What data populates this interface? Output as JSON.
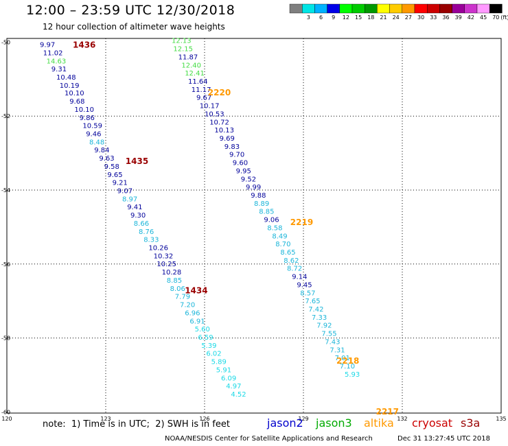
{
  "header": {
    "title": "12:00 – 23:59 UTC 12/30/2018",
    "subtitle": "12 hour collection of altimeter wave heights"
  },
  "legend_bar": {
    "unit": "(ft)",
    "bins": [
      {
        "label": "",
        "color": "#7f7f7f"
      },
      {
        "label": "3",
        "color": "#00e5e5"
      },
      {
        "label": "6",
        "color": "#00b2ff"
      },
      {
        "label": "9",
        "color": "#0000e8"
      },
      {
        "label": "12",
        "color": "#00ff00"
      },
      {
        "label": "15",
        "color": "#00cc00"
      },
      {
        "label": "18",
        "color": "#009900"
      },
      {
        "label": "21",
        "color": "#ffff00"
      },
      {
        "label": "24",
        "color": "#ffcc00"
      },
      {
        "label": "27",
        "color": "#ff9900"
      },
      {
        "label": "30",
        "color": "#ff0000"
      },
      {
        "label": "33",
        "color": "#cc0000"
      },
      {
        "label": "36",
        "color": "#990000"
      },
      {
        "label": "39",
        "color": "#990099"
      },
      {
        "label": "42",
        "color": "#cc33cc"
      },
      {
        "label": "45",
        "color": "#ff99ff"
      },
      {
        "label": "70",
        "color": "#000000"
      }
    ]
  },
  "note": "note:  1) Time is in UTC;  2) SWH is in feet",
  "satellites": [
    {
      "name": "jason2",
      "color": "#0000cc"
    },
    {
      "name": "jason3",
      "color": "#00aa00"
    },
    {
      "name": "altika",
      "color": "#ff9900"
    },
    {
      "name": "cryosat",
      "color": "#cc0000"
    },
    {
      "name": "s3a",
      "color": "#990000"
    }
  ],
  "footer": "NOAA/NESDIS Center for Satellite Applications and Research",
  "timestamp": "Dec 31 13:27:45 UTC 2018",
  "chart_data": {
    "type": "scatter",
    "xlim": [
      120,
      135
    ],
    "ylim": [
      -60.03,
      -49.9
    ],
    "x_ticks": [
      "120",
      "123",
      "126",
      "129",
      "132",
      "135"
    ],
    "y_ticks": [
      "-50",
      "-52",
      "-54",
      "-56",
      "-58",
      "-60"
    ],
    "grid": true,
    "pass_labels": [
      {
        "text": "1436",
        "x": 122.0,
        "y": -50.06,
        "color": "#990000"
      },
      {
        "text": "1435",
        "x": 123.6,
        "y": -53.2,
        "color": "#990000"
      },
      {
        "text": "1434",
        "x": 125.4,
        "y": -56.7,
        "color": "#990000"
      },
      {
        "text": "2220",
        "x": 126.1,
        "y": -51.35,
        "color": "#ff9900"
      },
      {
        "text": "2219",
        "x": 128.6,
        "y": -54.85,
        "color": "#ff9900"
      },
      {
        "text": "2218",
        "x": 130.0,
        "y": -58.6,
        "color": "#ff9900"
      },
      {
        "text": "2217",
        "x": 131.2,
        "y": -59.97,
        "color": "#ff9900"
      }
    ],
    "series": [
      {
        "name": "1436",
        "points": [
          {
            "x": 121.0,
            "y": -50.06,
            "v": "9.97",
            "color": "#00009a"
          },
          {
            "x": 121.1,
            "y": -50.28,
            "v": "11.02",
            "color": "#00009a"
          },
          {
            "x": 121.2,
            "y": -50.5,
            "v": "14.63",
            "color": "#44dd44"
          },
          {
            "x": 121.35,
            "y": -50.72,
            "v": "9.31",
            "color": "#00009a"
          },
          {
            "x": 121.5,
            "y": -50.94,
            "v": "10.48",
            "color": "#00009a"
          },
          {
            "x": 121.6,
            "y": -51.16,
            "v": "10.19",
            "color": "#00009a"
          },
          {
            "x": 121.75,
            "y": -51.37,
            "v": "10.10",
            "color": "#00009a"
          },
          {
            "x": 121.9,
            "y": -51.59,
            "v": "9.68",
            "color": "#00009a"
          },
          {
            "x": 122.05,
            "y": -51.81,
            "v": "10.10",
            "color": "#00009a"
          },
          {
            "x": 122.2,
            "y": -52.03,
            "v": "9.86",
            "color": "#00009a"
          },
          {
            "x": 122.3,
            "y": -52.25,
            "v": "10.59",
            "color": "#00009a"
          },
          {
            "x": 122.4,
            "y": -52.47,
            "v": "9.46",
            "color": "#00009a"
          },
          {
            "x": 122.5,
            "y": -52.69,
            "v": "8.48",
            "color": "#1ab5d9"
          },
          {
            "x": 122.65,
            "y": -52.91,
            "v": "9.84",
            "color": "#00009a"
          },
          {
            "x": 122.8,
            "y": -53.13,
            "v": "9.63",
            "color": "#00009a"
          },
          {
            "x": 122.95,
            "y": -53.35,
            "v": "9.58",
            "color": "#00009a"
          },
          {
            "x": 123.05,
            "y": -53.57,
            "v": "9.65",
            "color": "#00009a"
          },
          {
            "x": 123.2,
            "y": -53.79,
            "v": "9.21",
            "color": "#00009a"
          },
          {
            "x": 123.35,
            "y": -54.01,
            "v": "9.07",
            "color": "#00009a"
          },
          {
            "x": 123.5,
            "y": -54.23,
            "v": "8.97",
            "color": "#1ab5d9"
          },
          {
            "x": 123.65,
            "y": -54.45,
            "v": "9.41",
            "color": "#00009a"
          },
          {
            "x": 123.75,
            "y": -54.67,
            "v": "9.30",
            "color": "#00009a"
          },
          {
            "x": 123.85,
            "y": -54.89,
            "v": "8.66",
            "color": "#1ab5d9"
          },
          {
            "x": 124.0,
            "y": -55.11,
            "v": "8.76",
            "color": "#1ab5d9"
          },
          {
            "x": 124.15,
            "y": -55.33,
            "v": "8.33",
            "color": "#1ab5d9"
          },
          {
            "x": 124.3,
            "y": -55.55,
            "v": "10.26",
            "color": "#00009a"
          },
          {
            "x": 124.45,
            "y": -55.77,
            "v": "10.32",
            "color": "#00009a"
          },
          {
            "x": 124.55,
            "y": -55.99,
            "v": "10.25",
            "color": "#00009a"
          },
          {
            "x": 124.7,
            "y": -56.21,
            "v": "10.28",
            "color": "#00009a"
          },
          {
            "x": 124.85,
            "y": -56.43,
            "v": "8.85",
            "color": "#1ab5d9"
          },
          {
            "x": 124.95,
            "y": -56.65,
            "v": "8.06",
            "color": "#1ab5d9"
          },
          {
            "x": 125.1,
            "y": -56.87,
            "v": "7.79",
            "color": "#1ab5d9"
          },
          {
            "x": 125.25,
            "y": -57.09,
            "v": "7.20",
            "color": "#1ab5d9"
          },
          {
            "x": 125.4,
            "y": -57.31,
            "v": "6.96",
            "color": "#1ab5d9"
          },
          {
            "x": 125.55,
            "y": -57.53,
            "v": "6.91",
            "color": "#1ab5d9"
          },
          {
            "x": 125.7,
            "y": -57.75,
            "v": "5.60",
            "color": "#1ad9e6"
          },
          {
            "x": 125.8,
            "y": -57.97,
            "v": "6.59",
            "color": "#1ad9e6"
          },
          {
            "x": 125.9,
            "y": -58.19,
            "v": "5.39",
            "color": "#1ad9e6"
          },
          {
            "x": 126.05,
            "y": -58.41,
            "v": "6.02",
            "color": "#1ad9e6"
          },
          {
            "x": 126.2,
            "y": -58.63,
            "v": "5.89",
            "color": "#1ad9e6"
          },
          {
            "x": 126.35,
            "y": -58.85,
            "v": "5.91",
            "color": "#1ad9e6"
          },
          {
            "x": 126.5,
            "y": -59.07,
            "v": "6.09",
            "color": "#1ad9e6"
          },
          {
            "x": 126.65,
            "y": -59.29,
            "v": "4.97",
            "color": "#1ad9e6"
          },
          {
            "x": 126.8,
            "y": -59.51,
            "v": "4.52",
            "color": "#1ad9e6"
          }
        ]
      },
      {
        "name": "2220",
        "points": [
          {
            "x": 125.0,
            "y": -49.95,
            "v": "12.13",
            "color": "#44dd44"
          },
          {
            "x": 125.05,
            "y": -50.17,
            "v": "12.15",
            "color": "#44dd44"
          },
          {
            "x": 125.2,
            "y": -50.39,
            "v": "11.87",
            "color": "#00009a"
          },
          {
            "x": 125.3,
            "y": -50.61,
            "v": "12.40",
            "color": "#44dd44"
          },
          {
            "x": 125.4,
            "y": -50.83,
            "v": "12.41",
            "color": "#44dd44"
          },
          {
            "x": 125.5,
            "y": -51.05,
            "v": "11.64",
            "color": "#00009a"
          },
          {
            "x": 125.6,
            "y": -51.27,
            "v": "11.17",
            "color": "#00009a"
          },
          {
            "x": 125.75,
            "y": -51.49,
            "v": "9.67",
            "color": "#00009a"
          },
          {
            "x": 125.85,
            "y": -51.71,
            "v": "10.17",
            "color": "#00009a"
          },
          {
            "x": 126.0,
            "y": -51.93,
            "v": "10.53",
            "color": "#00009a"
          },
          {
            "x": 126.15,
            "y": -52.15,
            "v": "10.72",
            "color": "#00009a"
          },
          {
            "x": 126.3,
            "y": -52.37,
            "v": "10.13",
            "color": "#00009a"
          },
          {
            "x": 126.45,
            "y": -52.59,
            "v": "9.69",
            "color": "#00009a"
          },
          {
            "x": 126.6,
            "y": -52.81,
            "v": "9.83",
            "color": "#00009a"
          },
          {
            "x": 126.75,
            "y": -53.03,
            "v": "9.70",
            "color": "#00009a"
          },
          {
            "x": 126.85,
            "y": -53.25,
            "v": "9.60",
            "color": "#00009a"
          },
          {
            "x": 126.95,
            "y": -53.47,
            "v": "9.95",
            "color": "#00009a"
          },
          {
            "x": 127.1,
            "y": -53.69,
            "v": "9.52",
            "color": "#00009a"
          },
          {
            "x": 127.25,
            "y": -53.91,
            "v": "9.99",
            "color": "#00009a"
          },
          {
            "x": 127.4,
            "y": -54.13,
            "v": "9.88",
            "color": "#00009a"
          },
          {
            "x": 127.5,
            "y": -54.35,
            "v": "8.89",
            "color": "#1ab5d9"
          },
          {
            "x": 127.65,
            "y": -54.57,
            "v": "8.85",
            "color": "#1ab5d9"
          },
          {
            "x": 127.8,
            "y": -54.79,
            "v": "9.06",
            "color": "#00009a"
          },
          {
            "x": 127.9,
            "y": -55.01,
            "v": "8.58",
            "color": "#1ab5d9"
          },
          {
            "x": 128.05,
            "y": -55.23,
            "v": "8.49",
            "color": "#1ab5d9"
          },
          {
            "x": 128.15,
            "y": -55.45,
            "v": "8.70",
            "color": "#1ab5d9"
          },
          {
            "x": 128.3,
            "y": -55.67,
            "v": "8.65",
            "color": "#1ab5d9"
          },
          {
            "x": 128.4,
            "y": -55.89,
            "v": "8.62",
            "color": "#1ab5d9"
          },
          {
            "x": 128.5,
            "y": -56.11,
            "v": "8.72",
            "color": "#1ab5d9"
          },
          {
            "x": 128.65,
            "y": -56.33,
            "v": "9.14",
            "color": "#00009a"
          },
          {
            "x": 128.8,
            "y": -56.55,
            "v": "9.45",
            "color": "#00009a"
          },
          {
            "x": 128.9,
            "y": -56.77,
            "v": "8.57",
            "color": "#1ab5d9"
          },
          {
            "x": 129.05,
            "y": -56.99,
            "v": "7.65",
            "color": "#1ab5d9"
          },
          {
            "x": 129.15,
            "y": -57.21,
            "v": "7.42",
            "color": "#1ab5d9"
          },
          {
            "x": 129.25,
            "y": -57.43,
            "v": "7.33",
            "color": "#1ab5d9"
          },
          {
            "x": 129.4,
            "y": -57.65,
            "v": "7.92",
            "color": "#1ab5d9"
          },
          {
            "x": 129.55,
            "y": -57.87,
            "v": "7.55",
            "color": "#1ab5d9"
          },
          {
            "x": 129.65,
            "y": -58.09,
            "v": "7.43",
            "color": "#1ab5d9"
          },
          {
            "x": 129.8,
            "y": -58.31,
            "v": "7.31",
            "color": "#1ab5d9"
          },
          {
            "x": 129.95,
            "y": -58.53,
            "v": "7.01",
            "color": "#1ab5d9"
          },
          {
            "x": 130.1,
            "y": -58.75,
            "v": "7.10",
            "color": "#1ab5d9"
          },
          {
            "x": 130.25,
            "y": -58.97,
            "v": "5.93",
            "color": "#1ad9e6"
          }
        ]
      }
    ]
  }
}
